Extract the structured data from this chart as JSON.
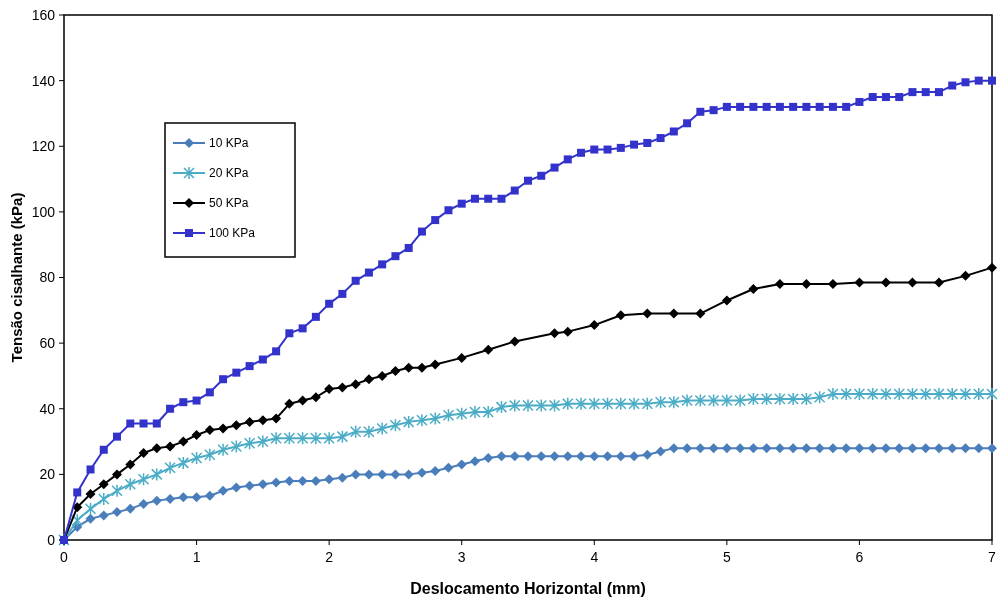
{
  "chart_data": {
    "type": "line",
    "xlabel": "Deslocamento Horizontal (mm)",
    "ylabel": "Tensão cisalhante (kPa)",
    "xlim": [
      0,
      7
    ],
    "xticks": [
      0,
      1,
      2,
      3,
      4,
      5,
      6,
      7
    ],
    "ylim": [
      0,
      160
    ],
    "yticks": [
      0,
      20,
      40,
      60,
      80,
      100,
      120,
      140,
      160
    ],
    "grid": false,
    "legend": "top left",
    "series": [
      {
        "name": "10 KPa",
        "color": "#4a7ebb",
        "marker": "diamond",
        "x": [
          0,
          0.1,
          0.2,
          0.3,
          0.4,
          0.5,
          0.6,
          0.7,
          0.8,
          0.9,
          1,
          1.1,
          1.2,
          1.3,
          1.4,
          1.5,
          1.6,
          1.7,
          1.8,
          1.9,
          2,
          2.1,
          2.2,
          2.3,
          2.4,
          2.5,
          2.6,
          2.7,
          2.8,
          2.9,
          3,
          3.1,
          3.2,
          3.3,
          3.4,
          3.5,
          3.6,
          3.7,
          3.8,
          3.9,
          4,
          4.1,
          4.2,
          4.3,
          4.4,
          4.5,
          4.6,
          4.7,
          4.8,
          4.9,
          5,
          5.1,
          5.2,
          5.3,
          5.4,
          5.5,
          5.6,
          5.7,
          5.8,
          5.9,
          6,
          6.1,
          6.2,
          6.3,
          6.4,
          6.5,
          6.6,
          6.7,
          6.8,
          6.9,
          7
        ],
        "values": [
          0,
          4,
          6.5,
          7.5,
          8.5,
          9.5,
          11,
          12,
          12.5,
          13,
          13,
          13.5,
          15,
          16,
          16.5,
          17,
          17.5,
          18,
          18,
          18,
          18.5,
          19,
          20,
          20,
          20,
          20,
          20,
          20.5,
          21,
          22,
          23,
          24,
          25,
          25.5,
          25.5,
          25.5,
          25.5,
          25.5,
          25.5,
          25.5,
          25.5,
          25.5,
          25.5,
          25.5,
          26,
          27,
          28,
          28,
          28,
          28,
          28,
          28,
          28,
          28,
          28,
          28,
          28,
          28,
          28,
          28,
          28,
          28,
          28,
          28,
          28,
          28,
          28,
          28,
          28,
          28,
          28
        ]
      },
      {
        "name": "20 KPa",
        "color": "#4bacc6",
        "marker": "cross",
        "x": [
          0,
          0.1,
          0.2,
          0.3,
          0.4,
          0.5,
          0.6,
          0.7,
          0.8,
          0.9,
          1,
          1.1,
          1.2,
          1.3,
          1.4,
          1.5,
          1.6,
          1.7,
          1.8,
          1.9,
          2,
          2.1,
          2.2,
          2.3,
          2.4,
          2.5,
          2.6,
          2.7,
          2.8,
          2.9,
          3,
          3.1,
          3.2,
          3.3,
          3.4,
          3.5,
          3.6,
          3.7,
          3.8,
          3.9,
          4,
          4.1,
          4.2,
          4.3,
          4.4,
          4.5,
          4.6,
          4.7,
          4.8,
          4.9,
          5,
          5.1,
          5.2,
          5.3,
          5.4,
          5.5,
          5.6,
          5.7,
          5.8,
          5.9,
          6,
          6.1,
          6.2,
          6.3,
          6.4,
          6.5,
          6.6,
          6.7,
          6.8,
          6.9,
          7
        ],
        "values": [
          0,
          6,
          9.5,
          12.5,
          15,
          17,
          18.5,
          20,
          22,
          23.5,
          25,
          26,
          27.5,
          28.5,
          29.5,
          30,
          31,
          31,
          31,
          31,
          31,
          31.5,
          33,
          33,
          34,
          35,
          36,
          36.5,
          37,
          38,
          38.5,
          39,
          39,
          40.5,
          41,
          41,
          41,
          41,
          41.5,
          41.5,
          41.5,
          41.5,
          41.5,
          41.5,
          41.5,
          42,
          42,
          42.5,
          42.5,
          42.5,
          42.5,
          42.5,
          43,
          43,
          43,
          43,
          43,
          43.5,
          44.5,
          44.5,
          44.5,
          44.5,
          44.5,
          44.5,
          44.5,
          44.5,
          44.5,
          44.5,
          44.5,
          44.5,
          44.5
        ]
      },
      {
        "name": "50 KPa",
        "color": "#000000",
        "marker": "diamond",
        "x": [
          0,
          0.1,
          0.2,
          0.3,
          0.4,
          0.5,
          0.6,
          0.7,
          0.8,
          0.9,
          1,
          1.1,
          1.2,
          1.3,
          1.4,
          1.5,
          1.6,
          1.7,
          1.8,
          1.9,
          2,
          2.1,
          2.2,
          2.3,
          2.4,
          2.5,
          2.6,
          2.7,
          2.8,
          3,
          3.2,
          3.4,
          3.7,
          3.8,
          4,
          4.2,
          4.4,
          4.6,
          4.8,
          5,
          5.2,
          5.4,
          5.6,
          5.8,
          6,
          6.2,
          6.4,
          6.6,
          6.8,
          7
        ],
        "values": [
          0,
          10,
          14,
          17,
          20,
          23,
          26.5,
          28,
          28.5,
          30,
          32,
          33.5,
          34,
          35,
          36,
          36.5,
          37,
          41.5,
          42.5,
          43.5,
          46,
          46.5,
          47.5,
          49,
          50,
          51.5,
          52.5,
          52.5,
          53.5,
          55.5,
          58,
          60.5,
          63,
          63.5,
          65.5,
          68.5,
          69,
          69,
          69,
          73,
          76.5,
          78,
          78,
          78,
          78.5,
          78.5,
          78.5,
          78.5,
          80.5,
          83
        ]
      },
      {
        "name": "100 KPa",
        "color": "#3333cc",
        "marker": "square",
        "x": [
          0,
          0.1,
          0.2,
          0.3,
          0.4,
          0.5,
          0.6,
          0.7,
          0.8,
          0.9,
          1,
          1.1,
          1.2,
          1.3,
          1.4,
          1.5,
          1.6,
          1.7,
          1.8,
          1.9,
          2,
          2.1,
          2.2,
          2.3,
          2.4,
          2.5,
          2.6,
          2.7,
          2.8,
          2.9,
          3,
          3.1,
          3.2,
          3.3,
          3.4,
          3.5,
          3.6,
          3.7,
          3.8,
          3.9,
          4,
          4.1,
          4.2,
          4.3,
          4.4,
          4.5,
          4.6,
          4.7,
          4.8,
          4.9,
          5,
          5.1,
          5.2,
          5.3,
          5.4,
          5.5,
          5.6,
          5.7,
          5.8,
          5.9,
          6,
          6.1,
          6.2,
          6.3,
          6.4,
          6.5,
          6.6,
          6.7,
          6.8,
          6.9,
          7
        ],
        "values": [
          0,
          14.5,
          21.5,
          27.5,
          31.5,
          35.5,
          35.5,
          35.5,
          40,
          42,
          42.5,
          45,
          49,
          51,
          53,
          55,
          57.5,
          63,
          64.5,
          68,
          72,
          75,
          79,
          81.5,
          84,
          86.5,
          89,
          94,
          97.5,
          100.5,
          102.5,
          104,
          104,
          104,
          106.5,
          109.5,
          111,
          113.5,
          116,
          118,
          119,
          119,
          119.5,
          120.5,
          121,
          122.5,
          124.5,
          127,
          130.5,
          131,
          132,
          132,
          132,
          132,
          132,
          132,
          132,
          132,
          132,
          132,
          133.5,
          135,
          135,
          135,
          136.5,
          136.5,
          136.5,
          138.5,
          139.5,
          140,
          140
        ]
      }
    ]
  }
}
